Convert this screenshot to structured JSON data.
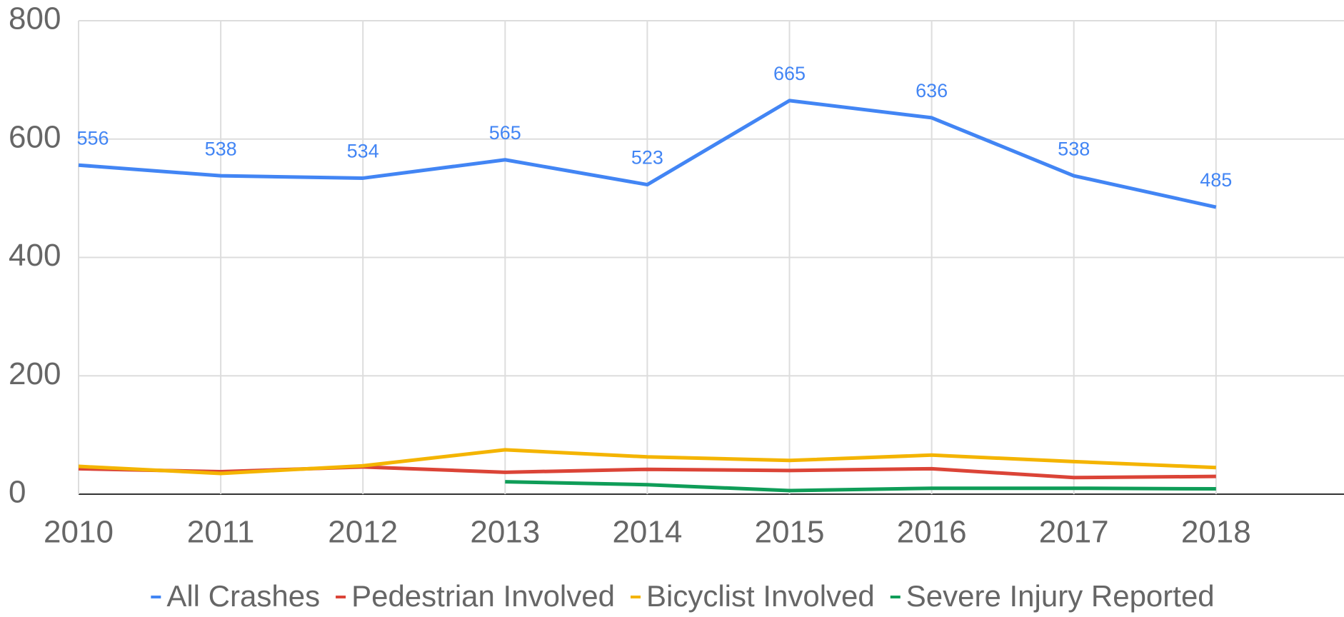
{
  "chart_data": {
    "type": "line",
    "x": [
      2010,
      2011,
      2012,
      2013,
      2014,
      2015,
      2016,
      2017,
      2018
    ],
    "series": [
      {
        "name": "All Crashes",
        "color": "#4285f4",
        "values": [
          556,
          538,
          534,
          565,
          523,
          665,
          636,
          538,
          485
        ]
      },
      {
        "name": "Pedestrian Involved",
        "color": "#db4437",
        "values": [
          43,
          38,
          46,
          37,
          42,
          40,
          43,
          28,
          30
        ]
      },
      {
        "name": "Bicyclist Involved",
        "color": "#f4b400",
        "values": [
          47,
          35,
          48,
          75,
          63,
          57,
          66,
          55,
          45
        ]
      },
      {
        "name": "Severe Injury Reported",
        "color": "#0f9d58",
        "values": [
          null,
          null,
          null,
          21,
          16,
          6,
          10,
          10,
          9
        ]
      }
    ],
    "xlim": [
      2010,
      2018.9
    ],
    "xticks": [
      2010,
      2011,
      2012,
      2013,
      2014,
      2015,
      2016,
      2017,
      2018
    ],
    "ylim": [
      0,
      800
    ],
    "yticks": [
      0,
      200,
      400,
      600,
      800
    ],
    "grid": true,
    "legend": "bottom"
  }
}
